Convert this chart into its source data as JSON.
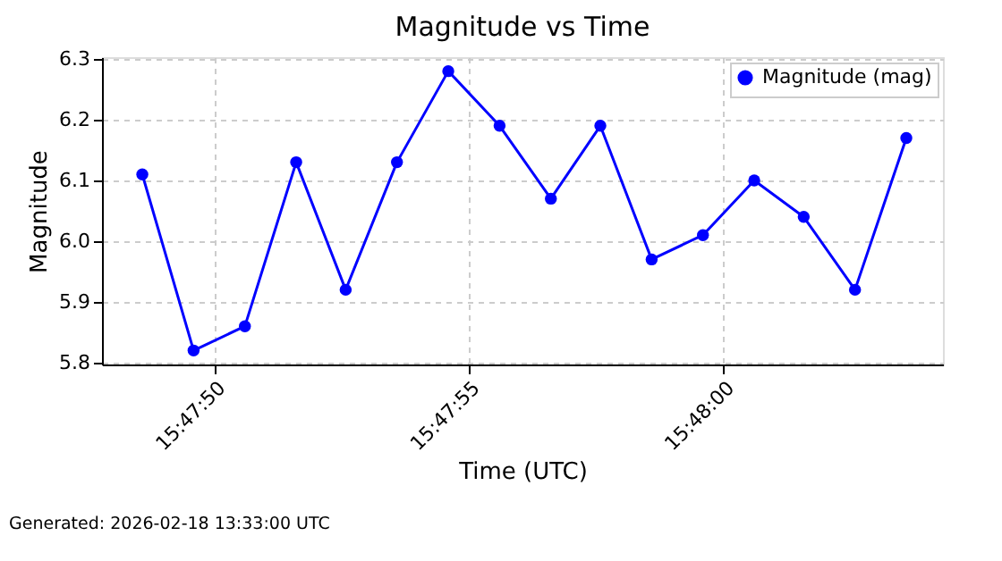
{
  "chart_data": {
    "type": "line",
    "title": "Magnitude vs Time",
    "xlabel": "Time (UTC)",
    "ylabel": "Magnitude",
    "x": [
      15.79683,
      15.79711,
      15.79739,
      15.79767,
      15.79794,
      15.79822,
      15.7985,
      15.79878,
      15.79906,
      15.79933,
      15.79961,
      15.79989,
      15.80017,
      15.80044,
      15.80072,
      15.801
    ],
    "series": [
      {
        "name": "Magnitude (mag)",
        "color": "#0000ff",
        "values": [
          6.11,
          5.82,
          5.86,
          6.13,
          5.92,
          6.13,
          6.28,
          6.19,
          6.07,
          6.19,
          5.97,
          6.01,
          6.1,
          6.04,
          5.92,
          6.17
        ]
      }
    ],
    "xlim": [
      15.79661,
      15.8012
    ],
    "xticks": [
      {
        "value": 15.797222,
        "label": "15:47:50"
      },
      {
        "value": 15.798611,
        "label": "15:47:55"
      },
      {
        "value": 15.8,
        "label": "15:48:00"
      }
    ],
    "ylim": [
      5.797,
      6.303
    ],
    "yticks": [
      5.8,
      5.9,
      {
        "value": 6.0,
        "label": "6.0"
      },
      6.1,
      6.2,
      6.3
    ],
    "grid": true,
    "legend": "top right",
    "marker": "circle",
    "line_style": "solid",
    "annotations": [
      "Generated: 2026-02-18 13:33:00 UTC"
    ]
  }
}
